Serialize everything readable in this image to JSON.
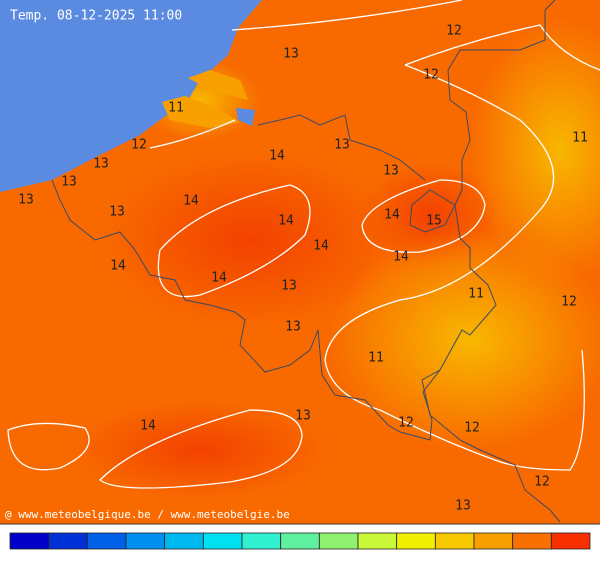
{
  "header": {
    "title": "Temp. 08-12-2025 11:00"
  },
  "labels": [
    12,
    13,
    12,
    11,
    11,
    12,
    13,
    14,
    13,
    13,
    13,
    13,
    14,
    13,
    14,
    14,
    15,
    14,
    14,
    14,
    14,
    13,
    11,
    12,
    13,
    11,
    13,
    14,
    12,
    12,
    12,
    13
  ],
  "footer": {
    "credit": "@ www.meteobelgique.be / www.meteobelgie.be"
  }
}
